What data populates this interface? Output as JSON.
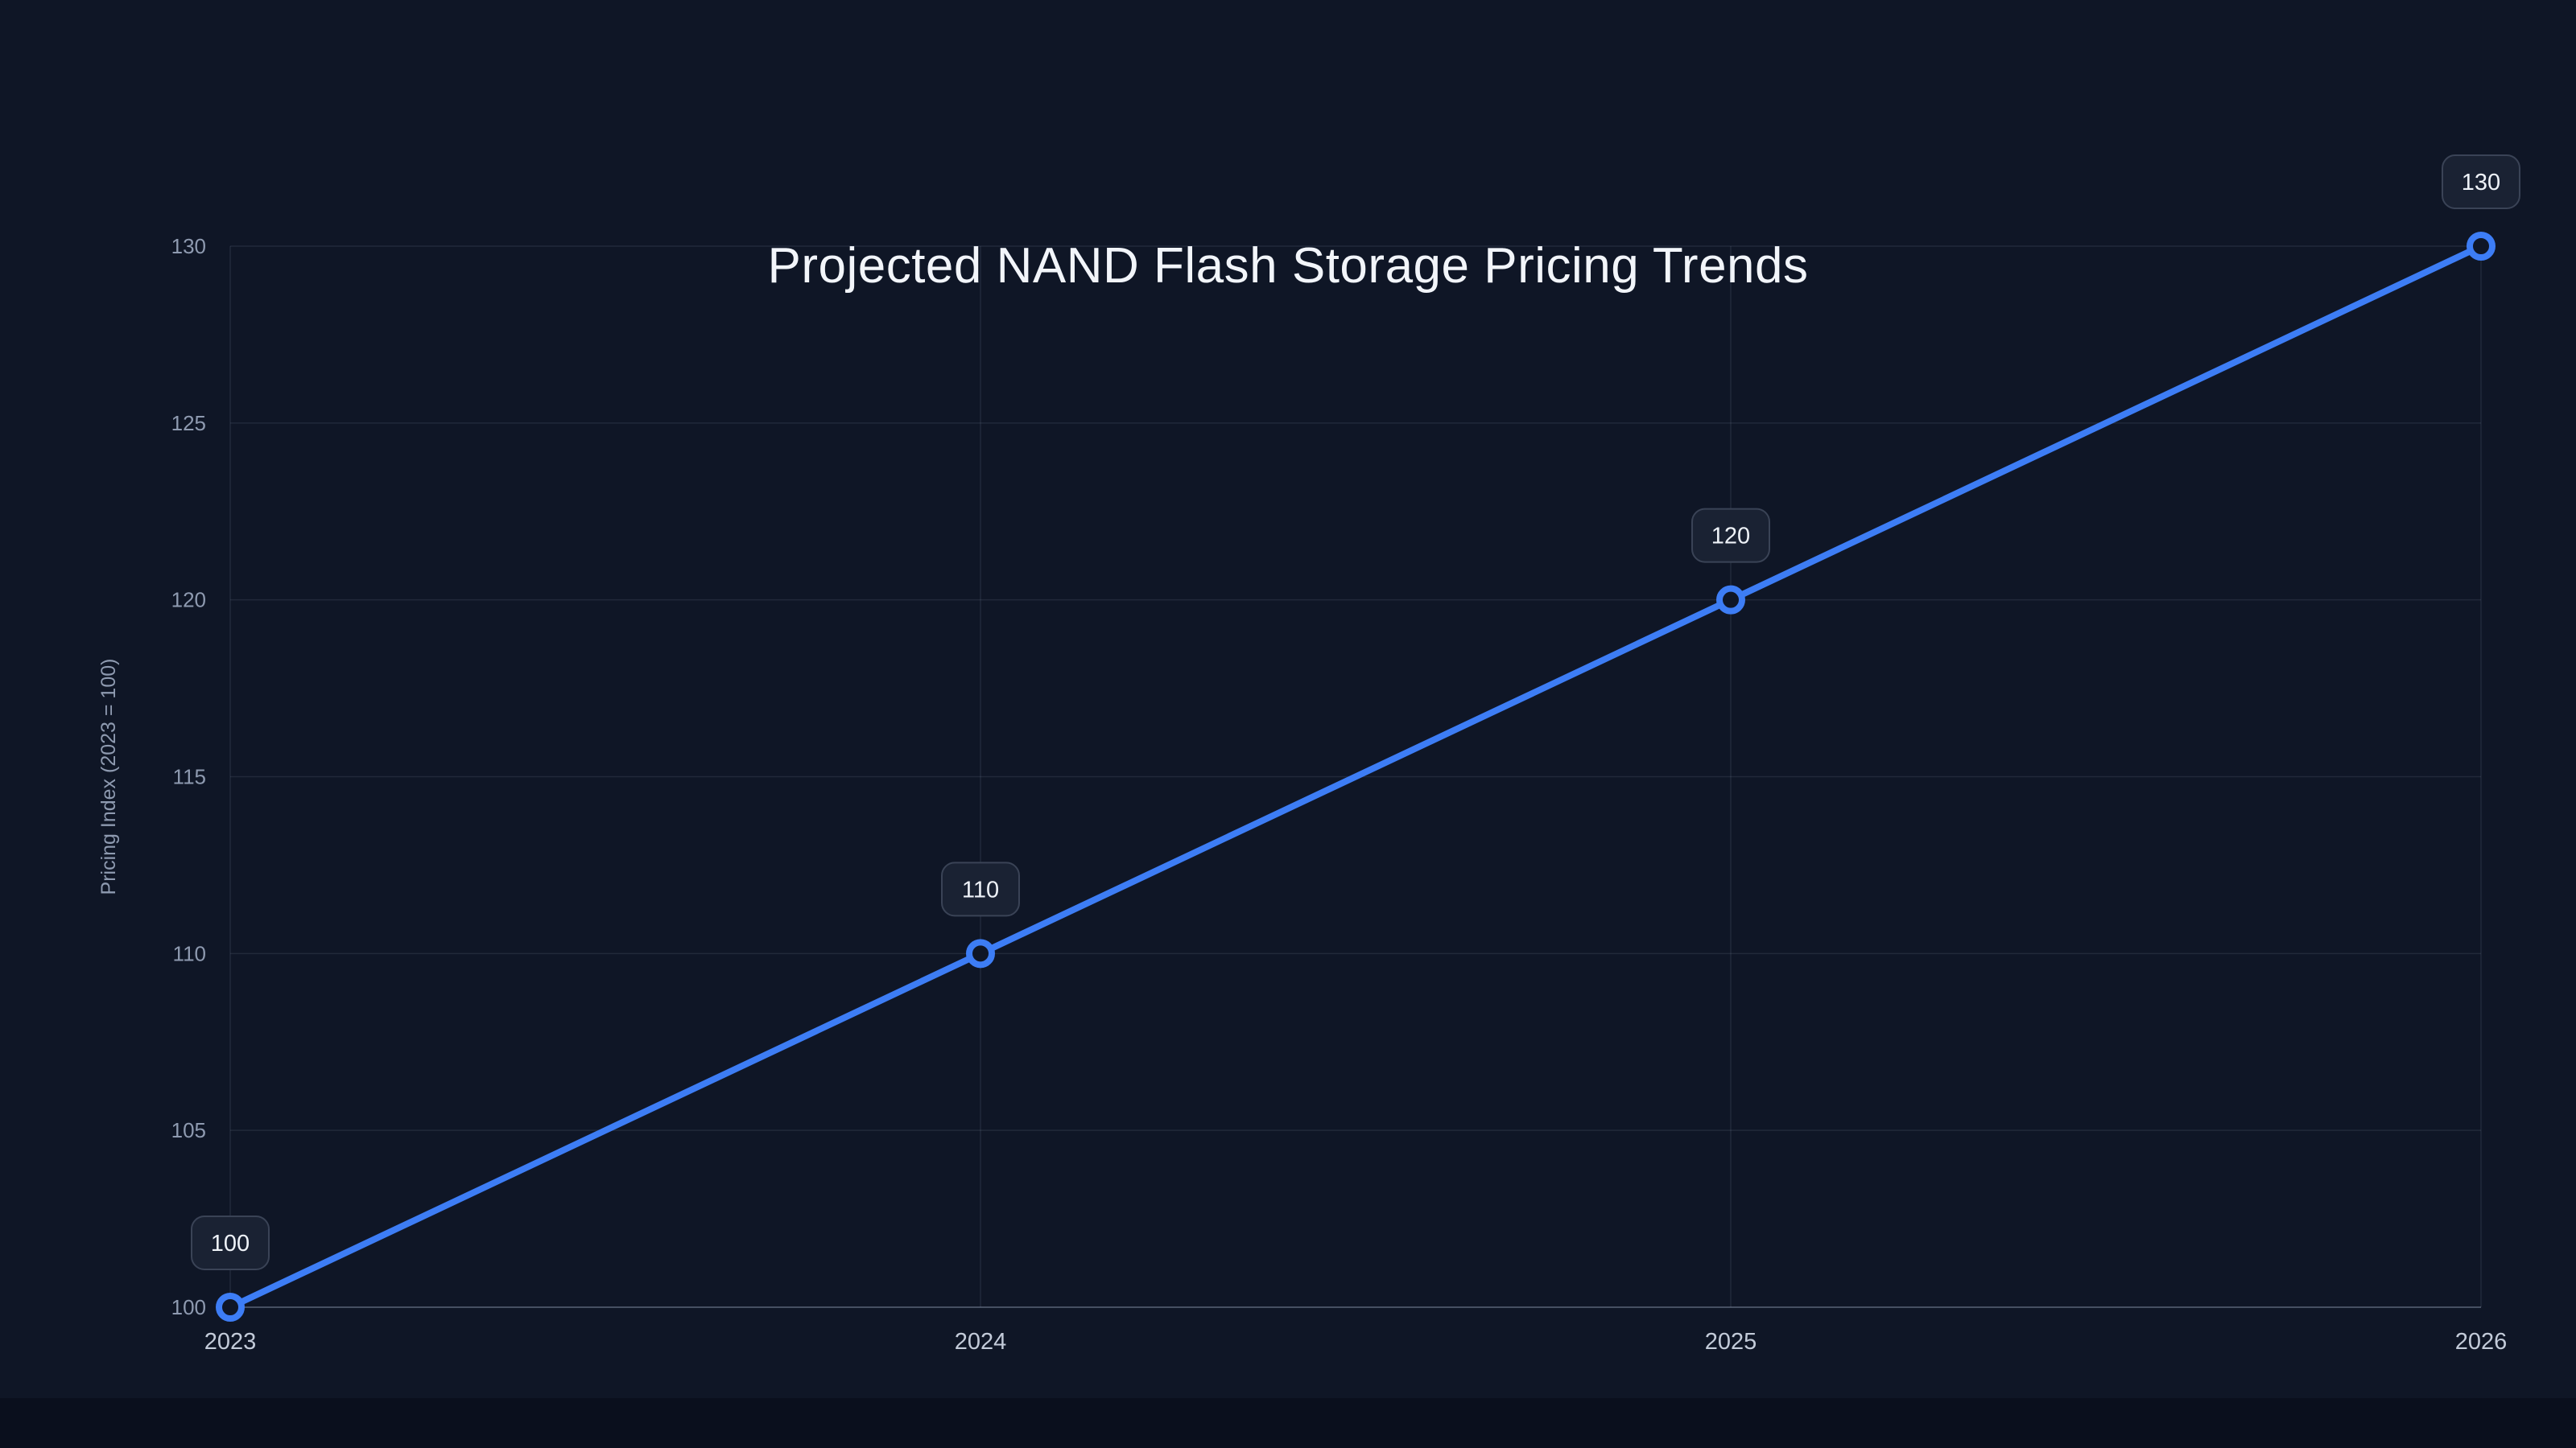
{
  "page": {
    "background": "#0f1626",
    "footer_background": "#0a0f1d"
  },
  "chart_data": {
    "type": "line",
    "title": "Projected NAND Flash Storage Pricing Trends",
    "categories": [
      "2023",
      "2024",
      "2025",
      "2026"
    ],
    "values": [
      100,
      110,
      120,
      130
    ],
    "data_labels": [
      "100",
      "110",
      "120",
      "130"
    ],
    "xlabel": "",
    "ylabel": "Pricing Index (2023 = 100)",
    "ylim": [
      100,
      130
    ],
    "yticks": [
      100,
      105,
      110,
      115,
      120,
      125,
      130
    ],
    "grid": true,
    "legend_position": "none",
    "line_color": "#3d7df5",
    "marker_fill": "#0f1626",
    "grid_color": "rgba(148,163,184,0.14)",
    "axis_color": "rgba(148,163,184,0.35)",
    "ytick_color": "#8e9ab0",
    "xtick_color": "#c3cbd9",
    "badge_fill": "#1a2233",
    "badge_border": "#3a4356",
    "label_text_color": "#eef2f8"
  }
}
